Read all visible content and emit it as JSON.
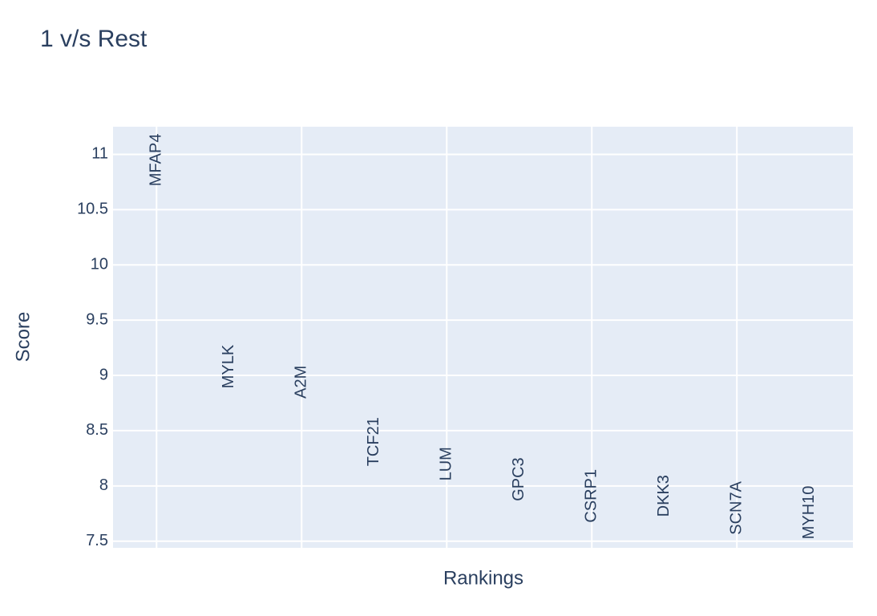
{
  "chart_data": {
    "type": "scatter",
    "mode": "text",
    "title": "1 v/s Rest",
    "x_label": "Rankings",
    "y_label": "Score",
    "x": [
      0,
      1,
      2,
      3,
      4,
      5,
      6,
      7,
      8,
      9
    ],
    "values": [
      10.95,
      9.08,
      8.94,
      8.4,
      8.2,
      8.06,
      7.91,
      7.91,
      7.8,
      7.76
    ],
    "text_labels": [
      "MFAP4",
      "MYLK",
      "A2M",
      "TCF21",
      "LUM",
      "GPC3",
      "CSRP1",
      "DKK3",
      "SCN7A",
      "MYH10"
    ],
    "color": "#2a3f5f",
    "xlim": [
      -0.6,
      9.6
    ],
    "xticks": [
      0,
      2,
      4,
      6,
      8
    ],
    "ylim": [
      7.44,
      11.25
    ],
    "yticks": [
      7.5,
      8,
      8.5,
      9,
      9.5,
      10,
      10.5,
      11
    ],
    "grid": true
  }
}
